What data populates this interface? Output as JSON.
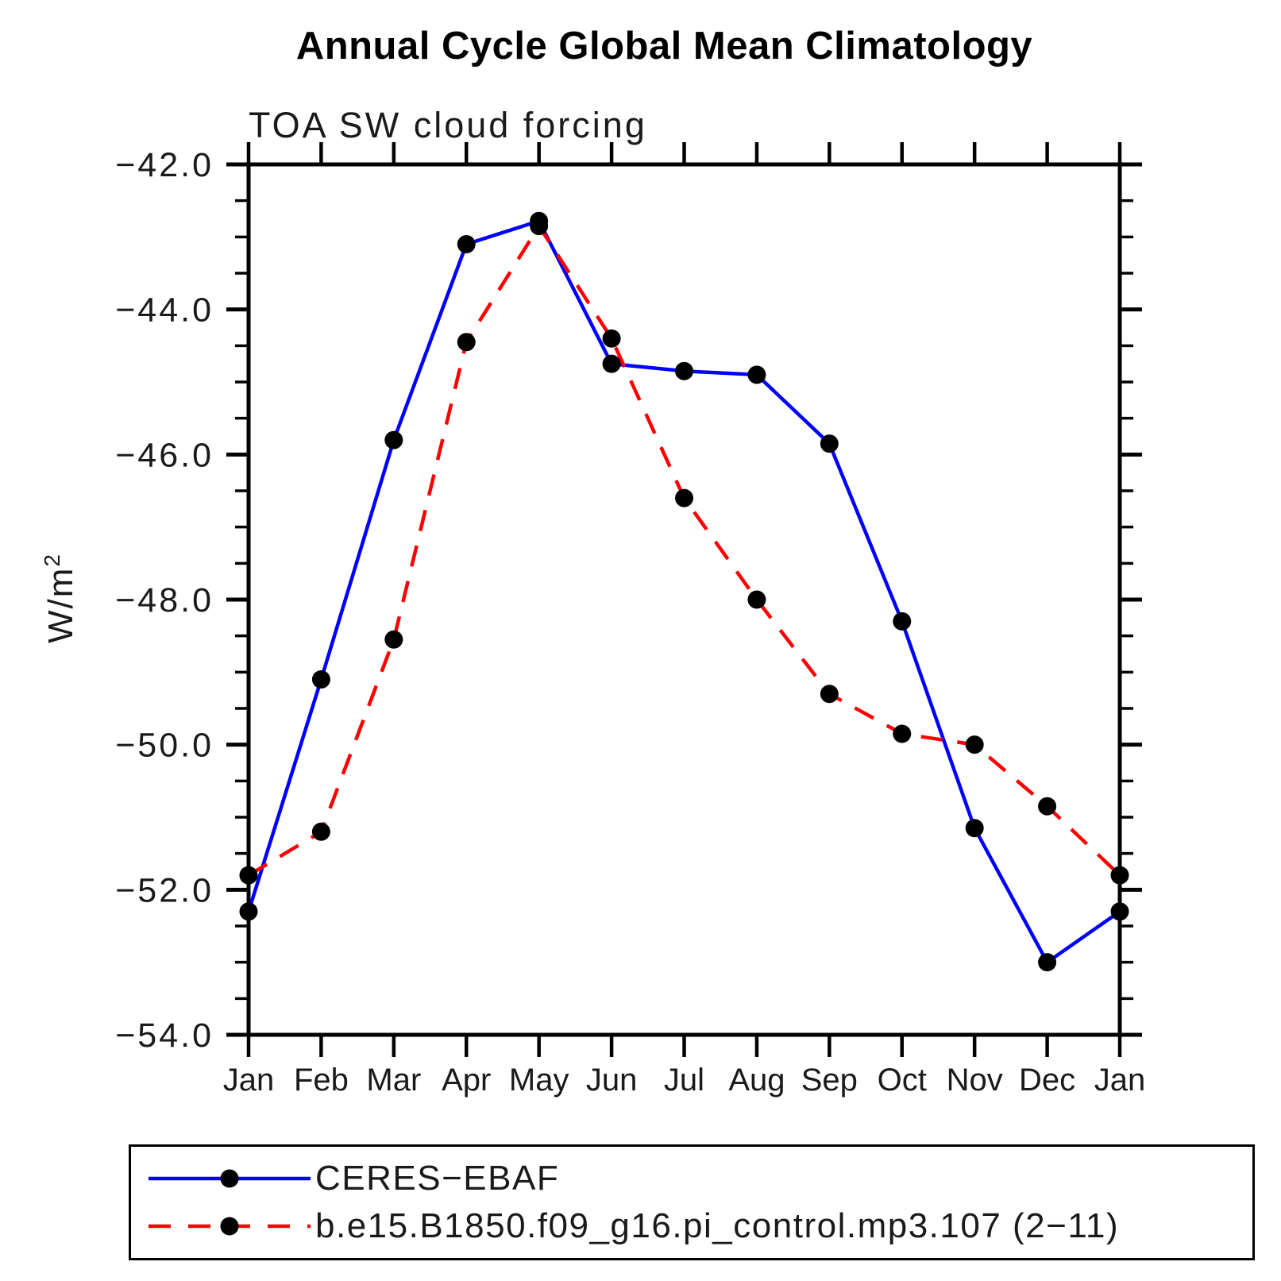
{
  "title": "Annual Cycle Global Mean Climatology",
  "subtitle": "TOA SW cloud forcing",
  "y_axis_title": {
    "base": "W/m",
    "sup": "2"
  },
  "colors": {
    "background": "#ffffff",
    "axis": "#000000",
    "marker": "#000000",
    "obs_line": "#0000ff",
    "model_line": "#ff0000"
  },
  "chart_data": {
    "type": "line",
    "title": "Annual Cycle Global Mean Climatology",
    "subtitle": "TOA SW cloud forcing",
    "xlabel": "",
    "ylabel": "W/m2",
    "categories": [
      "Jan",
      "Feb",
      "Mar",
      "Apr",
      "May",
      "Jun",
      "Jul",
      "Aug",
      "Sep",
      "Oct",
      "Nov",
      "Dec",
      "Jan"
    ],
    "series": [
      {
        "name": "CERES−EBAF",
        "color": "#0000ff",
        "line_style": "solid",
        "marker": "filled-circle",
        "values": [
          -52.3,
          -49.1,
          -45.8,
          -43.1,
          -42.78,
          -44.75,
          -44.85,
          -44.9,
          -45.85,
          -48.3,
          -51.15,
          -53.0,
          -52.3
        ]
      },
      {
        "name": "b.e15.B1850.f09_g16.pi_control.mp3.107 (2−11)",
        "color": "#ff0000",
        "line_style": "dashed",
        "marker": "filled-circle",
        "values": [
          -51.8,
          -51.2,
          -48.55,
          -44.45,
          -42.85,
          -44.4,
          -46.6,
          -48.0,
          -49.3,
          -49.85,
          -50.0,
          -50.85,
          -51.8
        ]
      }
    ],
    "ylim": [
      -54,
      -42
    ],
    "y_major_ticks": [
      -42,
      -44,
      -46,
      -48,
      -50,
      -52,
      -54
    ],
    "y_tick_labels": [
      "−42.0",
      "−44.0",
      "−46.0",
      "−48.0",
      "−50.0",
      "−52.0",
      "−54.0"
    ],
    "y_minor_step": 0.5,
    "grid": false,
    "ticks": "outward-all-four-sides",
    "legend_position": "bottom-box"
  }
}
